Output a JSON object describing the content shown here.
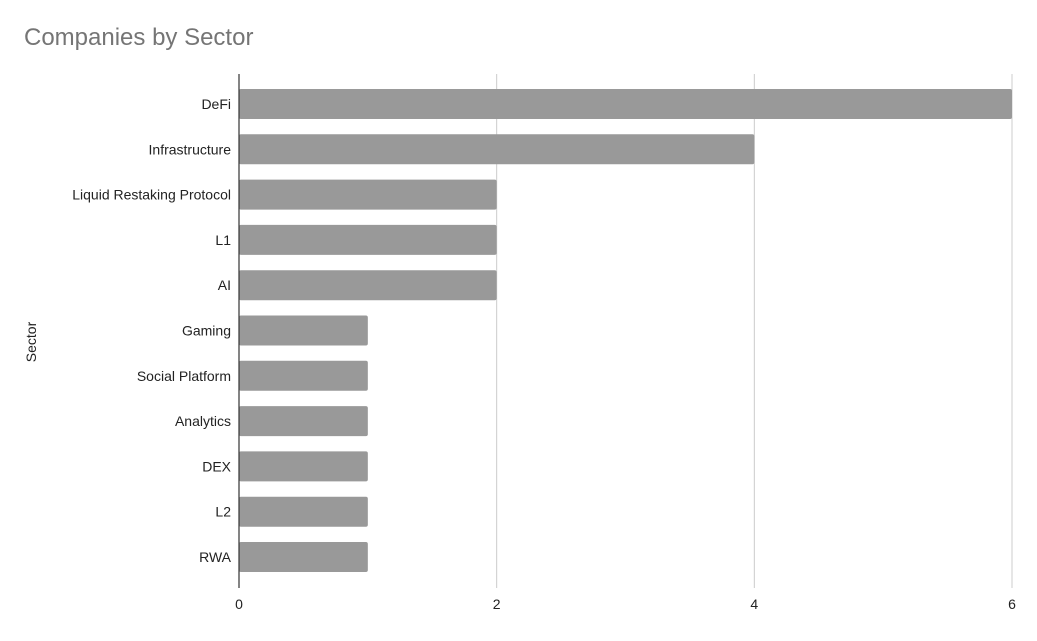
{
  "chart_data": {
    "type": "bar",
    "orientation": "horizontal",
    "title": "Companies by Sector",
    "xlabel": "",
    "ylabel": "Sector",
    "categories": [
      "DeFi",
      "Infrastructure",
      "Liquid Restaking Protocol",
      "L1",
      "AI",
      "Gaming",
      "Social Platform",
      "Analytics",
      "DEX",
      "L2",
      "RWA"
    ],
    "values": [
      6,
      4,
      2,
      2,
      2,
      1,
      1,
      1,
      1,
      1,
      1
    ],
    "xlim": [
      0,
      6
    ],
    "x_ticks": [
      "0",
      "2",
      "4",
      "6"
    ],
    "grid": "vertical",
    "legend": "none",
    "bar_color": "#999999",
    "grid_color": "#cccccc",
    "axis_color": "#333333"
  }
}
